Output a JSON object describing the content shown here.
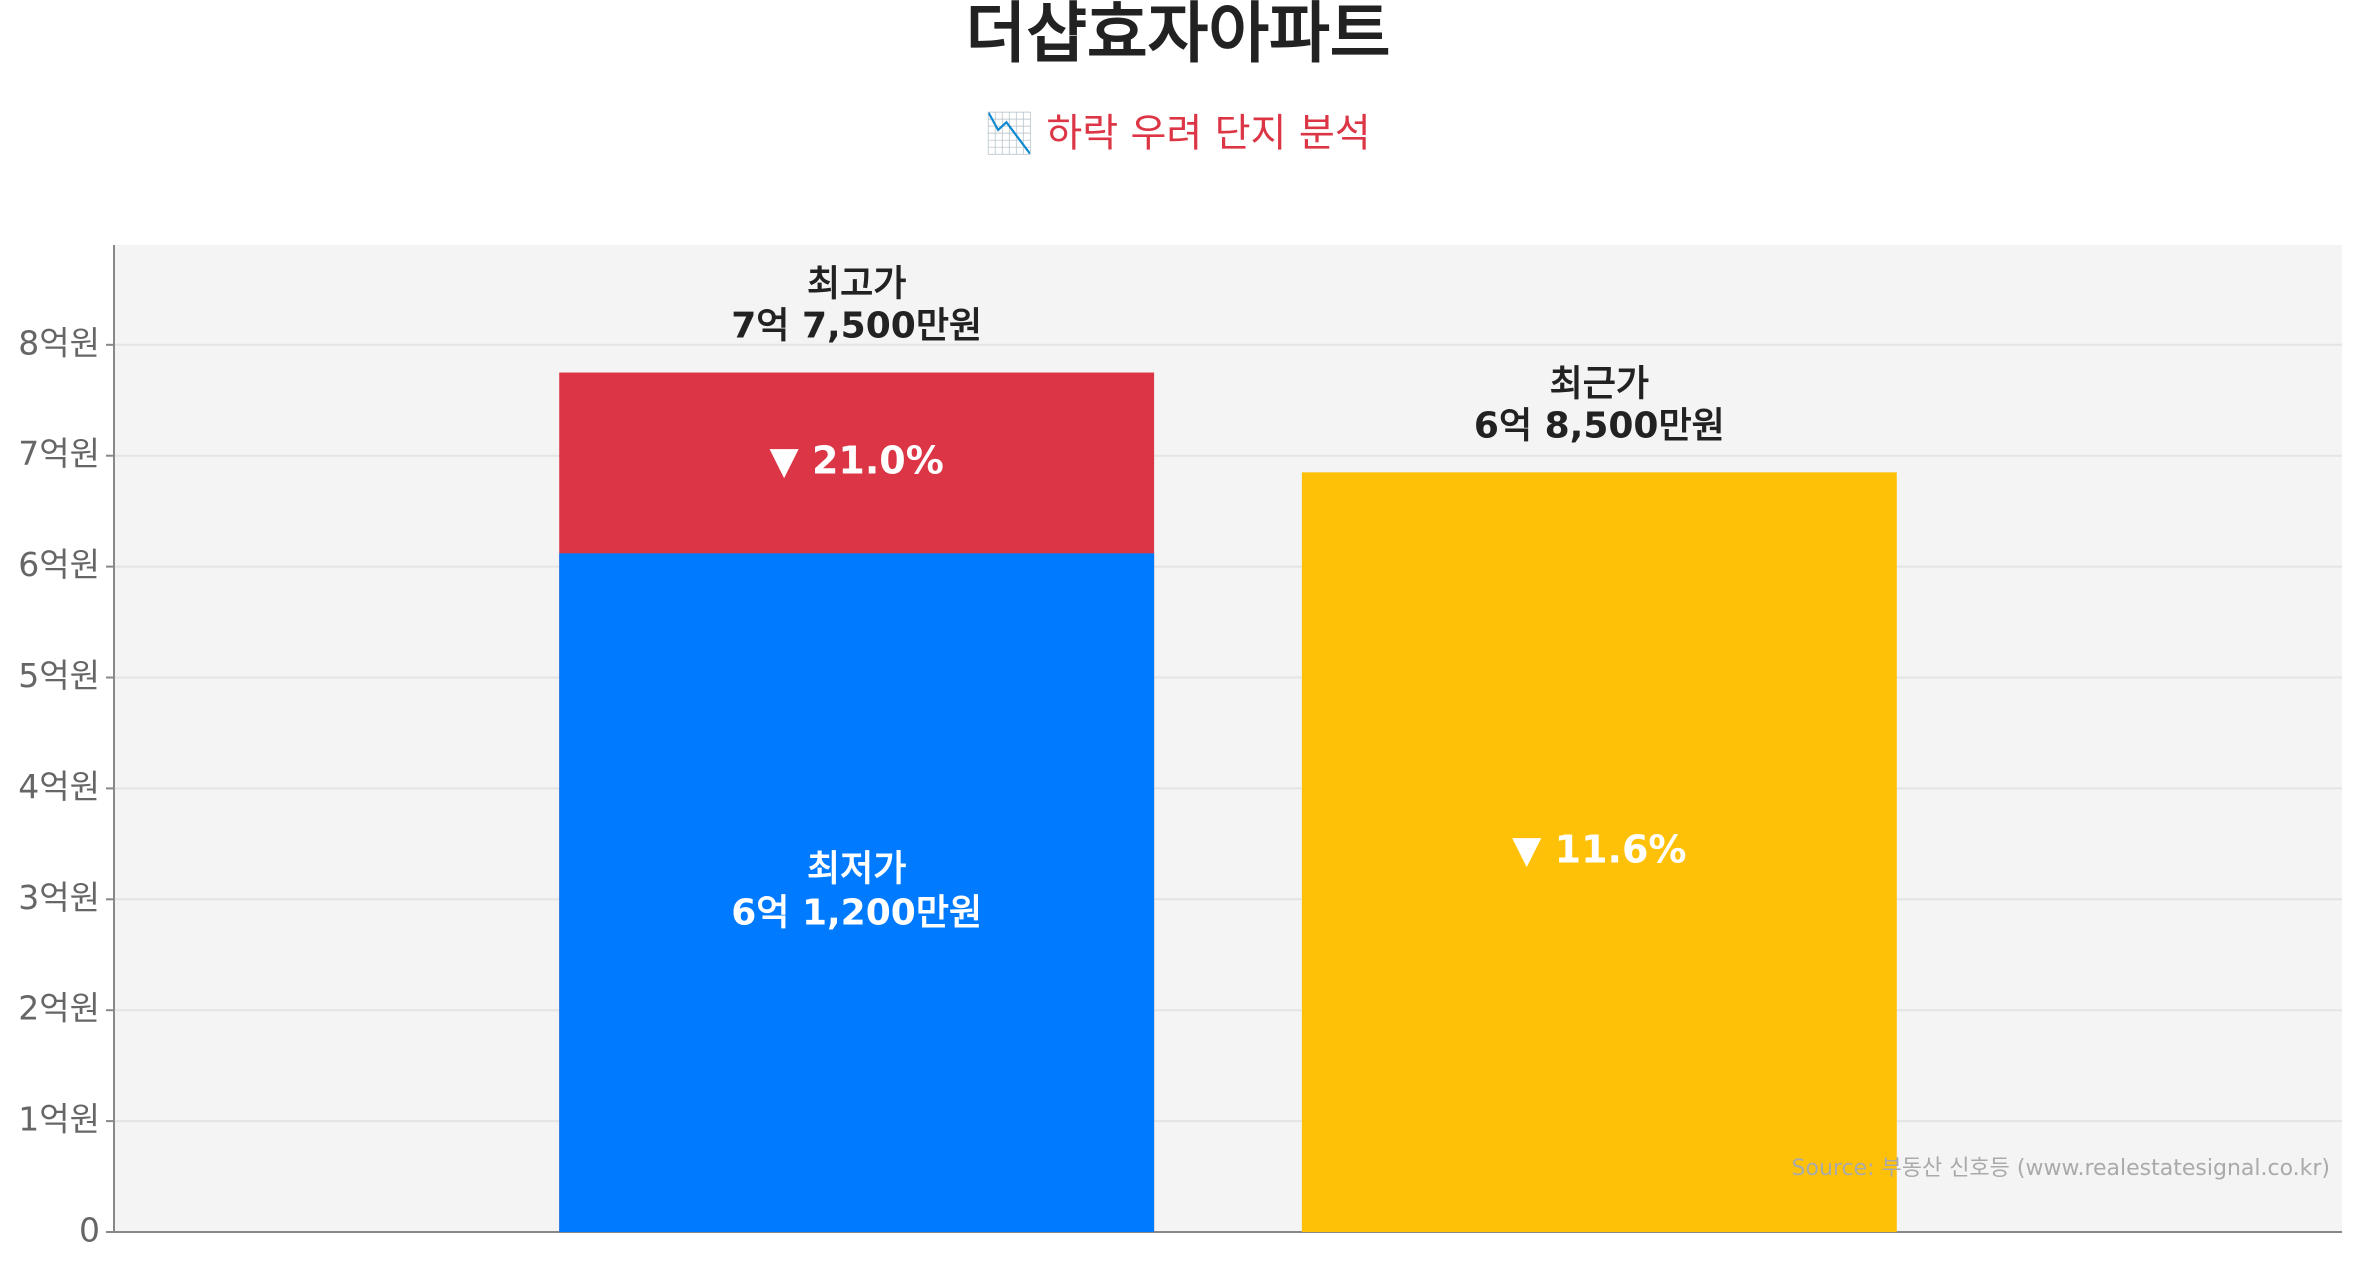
{
  "chart_data": {
    "type": "bar",
    "title": "더샵효자아파트",
    "subtitle": "📉 하락 우려 단지 분석",
    "categories": [
      null,
      null
    ],
    "series": [
      {
        "name": "최고가",
        "color": "#dc3545",
        "values": [
          7.75,
          null
        ],
        "value_labels": [
          "7억 7,500만원",
          null
        ]
      },
      {
        "name": "최저가",
        "color": "#007bff",
        "values": [
          6.12,
          null
        ],
        "value_labels": [
          "6억 1,200만원",
          null
        ]
      },
      {
        "name": "최근가",
        "color": "#ffc107",
        "values": [
          null,
          6.85
        ],
        "value_labels": [
          null,
          "6억 8,500만원"
        ]
      }
    ],
    "annotations": [
      "▼ 21.0%",
      "▼ 11.6%"
    ],
    "ylim": [
      0,
      8.9
    ],
    "yticks": [
      0,
      {
        "value": 1,
        "label": "1억원"
      },
      {
        "value": 2,
        "label": "2억원"
      },
      {
        "value": 3,
        "label": "3억원"
      },
      {
        "value": 4,
        "label": "4억원"
      },
      {
        "value": 5,
        "label": "5억원"
      },
      {
        "value": 6,
        "label": "6억원"
      },
      {
        "value": 7,
        "label": "7억원"
      },
      {
        "value": 8,
        "label": "8억원"
      }
    ],
    "grid": true,
    "source": "Source: 부동산 신호등 (www.realestatesignal.co.kr)"
  }
}
